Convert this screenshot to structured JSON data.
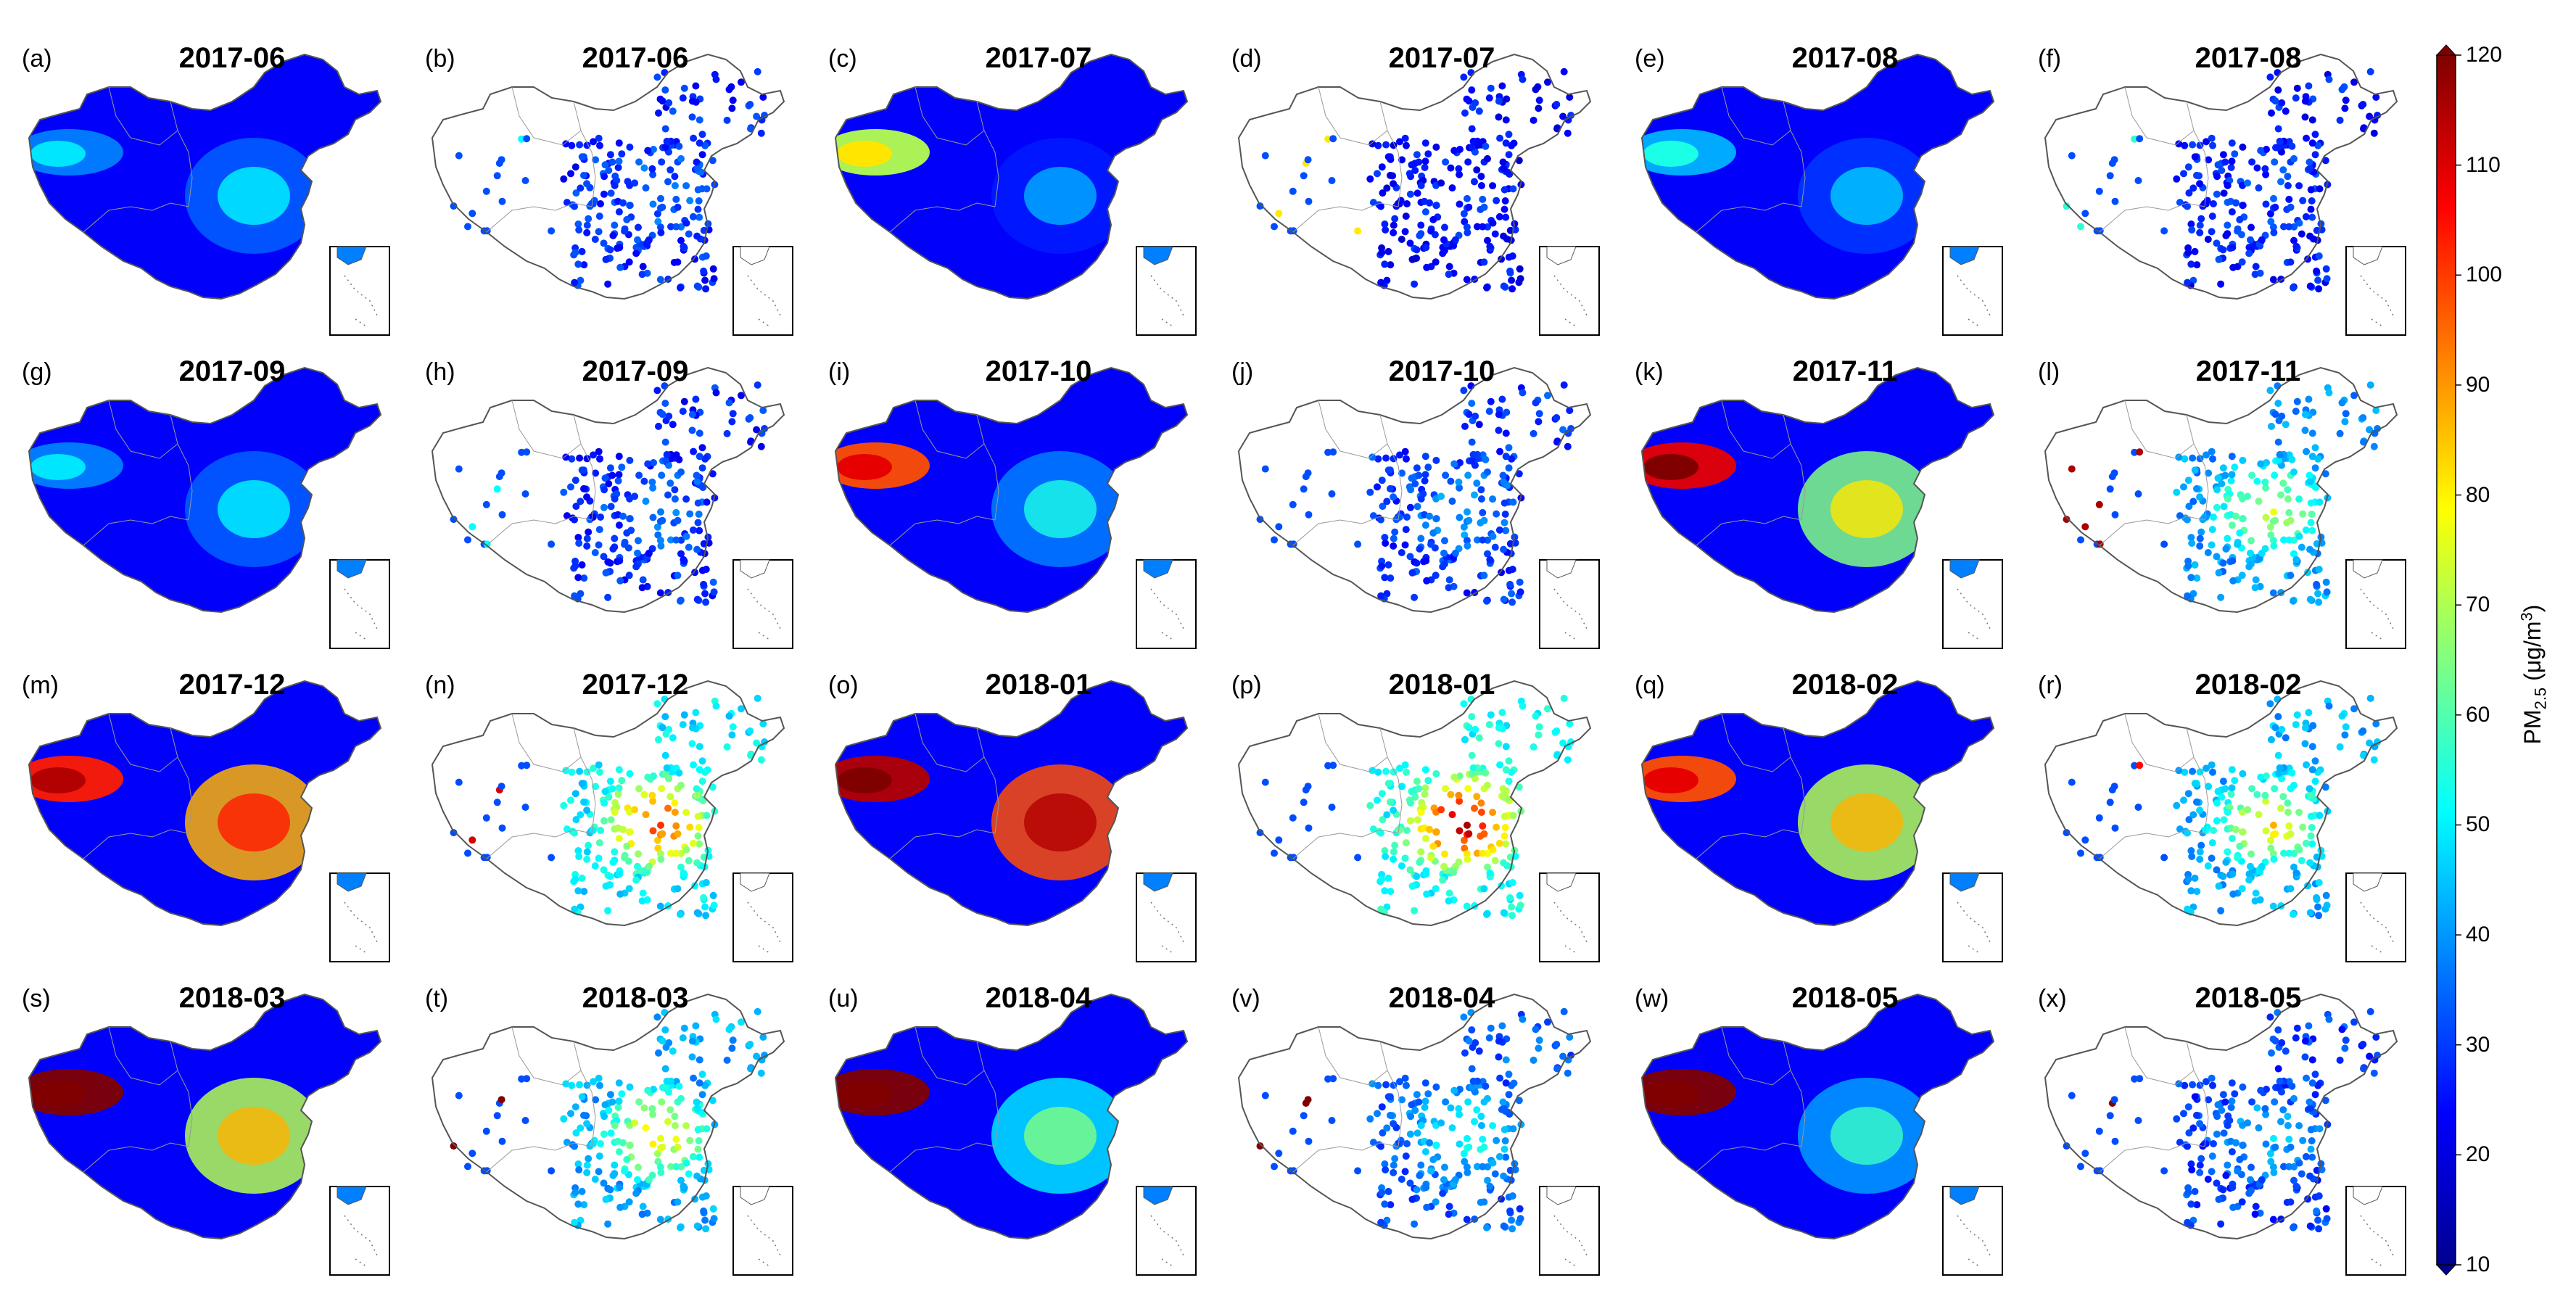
{
  "figure": {
    "panels": [
      {
        "label": "(a)",
        "title": "2017-06",
        "type": "map"
      },
      {
        "label": "(b)",
        "title": "2017-06",
        "type": "sites"
      },
      {
        "label": "(c)",
        "title": "2017-07",
        "type": "map"
      },
      {
        "label": "(d)",
        "title": "2017-07",
        "type": "sites"
      },
      {
        "label": "(e)",
        "title": "2017-08",
        "type": "map"
      },
      {
        "label": "(f)",
        "title": "2017-08",
        "type": "sites"
      },
      {
        "label": "(g)",
        "title": "2017-09",
        "type": "map"
      },
      {
        "label": "(h)",
        "title": "2017-09",
        "type": "sites"
      },
      {
        "label": "(i)",
        "title": "2017-10",
        "type": "map"
      },
      {
        "label": "(j)",
        "title": "2017-10",
        "type": "sites"
      },
      {
        "label": "(k)",
        "title": "2017-11",
        "type": "map"
      },
      {
        "label": "(l)",
        "title": "2017-11",
        "type": "sites"
      },
      {
        "label": "(m)",
        "title": "2017-12",
        "type": "map"
      },
      {
        "label": "(n)",
        "title": "2017-12",
        "type": "sites"
      },
      {
        "label": "(o)",
        "title": "2018-01",
        "type": "map"
      },
      {
        "label": "(p)",
        "title": "2018-01",
        "type": "sites"
      },
      {
        "label": "(q)",
        "title": "2018-02",
        "type": "map"
      },
      {
        "label": "(r)",
        "title": "2018-02",
        "type": "sites"
      },
      {
        "label": "(s)",
        "title": "2018-03",
        "type": "map"
      },
      {
        "label": "(t)",
        "title": "2018-03",
        "type": "sites"
      },
      {
        "label": "(u)",
        "title": "2018-04",
        "type": "map"
      },
      {
        "label": "(v)",
        "title": "2018-04",
        "type": "sites"
      },
      {
        "label": "(w)",
        "title": "2018-05",
        "type": "map"
      },
      {
        "label": "(x)",
        "title": "2018-05",
        "type": "sites"
      }
    ]
  },
  "colorbar": {
    "min": 10,
    "max": 120,
    "ticks": [
      120,
      110,
      100,
      90,
      80,
      70,
      60,
      50,
      40,
      30,
      20,
      10
    ],
    "title_main": "PM",
    "title_sub": "2.5",
    "title_unit": " (μg/m",
    "title_sup": "3",
    "title_close": ")",
    "colormap": "jet",
    "colors": [
      "#00008f",
      "#0000ff",
      "#0080ff",
      "#00ffff",
      "#80ff80",
      "#ffff00",
      "#ff8000",
      "#ff0000",
      "#800000"
    ]
  },
  "monthly_levels": [
    {
      "month": "2017-06",
      "west": 0.25,
      "east": 0.22
    },
    {
      "month": "2017-07",
      "west": 0.55,
      "east": 0.15
    },
    {
      "month": "2017-08",
      "west": 0.3,
      "east": 0.18
    },
    {
      "month": "2017-09",
      "west": 0.25,
      "east": 0.22
    },
    {
      "month": "2017-10",
      "west": 0.8,
      "east": 0.25
    },
    {
      "month": "2017-11",
      "west": 0.9,
      "east": 0.5
    },
    {
      "month": "2017-12",
      "west": 0.85,
      "east": 0.7
    },
    {
      "month": "2018-01",
      "west": 0.95,
      "east": 0.8
    },
    {
      "month": "2018-02",
      "west": 0.8,
      "east": 0.55
    },
    {
      "month": "2018-03",
      "west": 1.0,
      "east": 0.55
    },
    {
      "month": "2018-04",
      "west": 1.0,
      "east": 0.35
    },
    {
      "month": "2018-05",
      "west": 1.0,
      "east": 0.28
    }
  ]
}
